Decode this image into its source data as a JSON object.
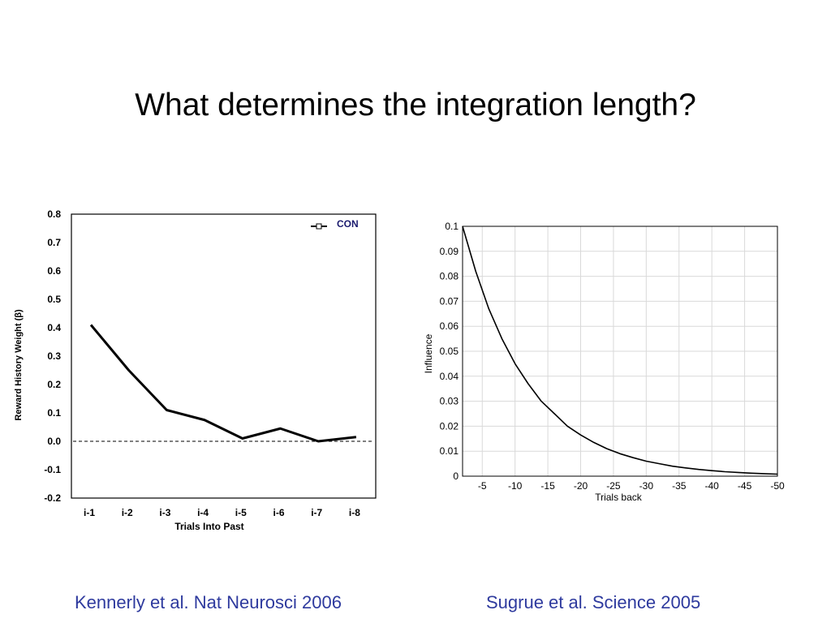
{
  "slide": {
    "title": "What determines the integration length?",
    "citation_left": "Kennerly et al. Nat Neurosci 2006",
    "citation_right": "Sugrue et al. Science 2005"
  },
  "colors": {
    "citation": "#2e3a9e",
    "lines": "#000000"
  },
  "chart_data": [
    {
      "type": "line",
      "xlabel": "Trials Into Past",
      "ylabel": "Reward History Weight (β)",
      "categories": [
        "i-1",
        "i-2",
        "i-3",
        "i-4",
        "i-5",
        "i-6",
        "i-7",
        "i-8"
      ],
      "y_ticks": [
        "0.8",
        "0.7",
        "0.6",
        "0.5",
        "0.4",
        "0.3",
        "0.2",
        "0.1",
        "0.0",
        "-0.1",
        "-0.2"
      ],
      "ylim": [
        -0.2,
        0.8
      ],
      "series": [
        {
          "name": "CON",
          "values": [
            0.41,
            0.25,
            0.11,
            0.075,
            0.01,
            0.045,
            0.0,
            0.015
          ]
        }
      ],
      "reference_line": {
        "y": 0.0,
        "style": "dashed"
      },
      "legend": "top-right",
      "grid": false
    },
    {
      "type": "line",
      "xlabel": "Trials back",
      "ylabel": "Influence",
      "x_ticks": [
        "-5",
        "-10",
        "-15",
        "-20",
        "-25",
        "-30",
        "-35",
        "-40",
        "-45",
        "-50"
      ],
      "y_ticks": [
        "0.1",
        "0.09",
        "0.08",
        "0.07",
        "0.06",
        "0.05",
        "0.04",
        "0.03",
        "0.02",
        "0.01",
        "0"
      ],
      "xlim": [
        -2,
        -50
      ],
      "ylim": [
        0,
        0.1
      ],
      "series": [
        {
          "x": [
            -2,
            -4,
            -6,
            -8,
            -10,
            -12,
            -14,
            -16,
            -18,
            -20,
            -22,
            -24,
            -26,
            -28,
            -30,
            -32,
            -34,
            -36,
            -38,
            -40,
            -42,
            -44,
            -46,
            -48,
            -50
          ],
          "values": [
            0.1,
            0.082,
            0.067,
            0.055,
            0.045,
            0.037,
            0.03,
            0.025,
            0.02,
            0.0165,
            0.0135,
            0.011,
            0.009,
            0.0074,
            0.006,
            0.005,
            0.004,
            0.0033,
            0.0027,
            0.0022,
            0.0018,
            0.0015,
            0.0012,
            0.001,
            0.0008
          ]
        }
      ],
      "grid": true
    }
  ]
}
